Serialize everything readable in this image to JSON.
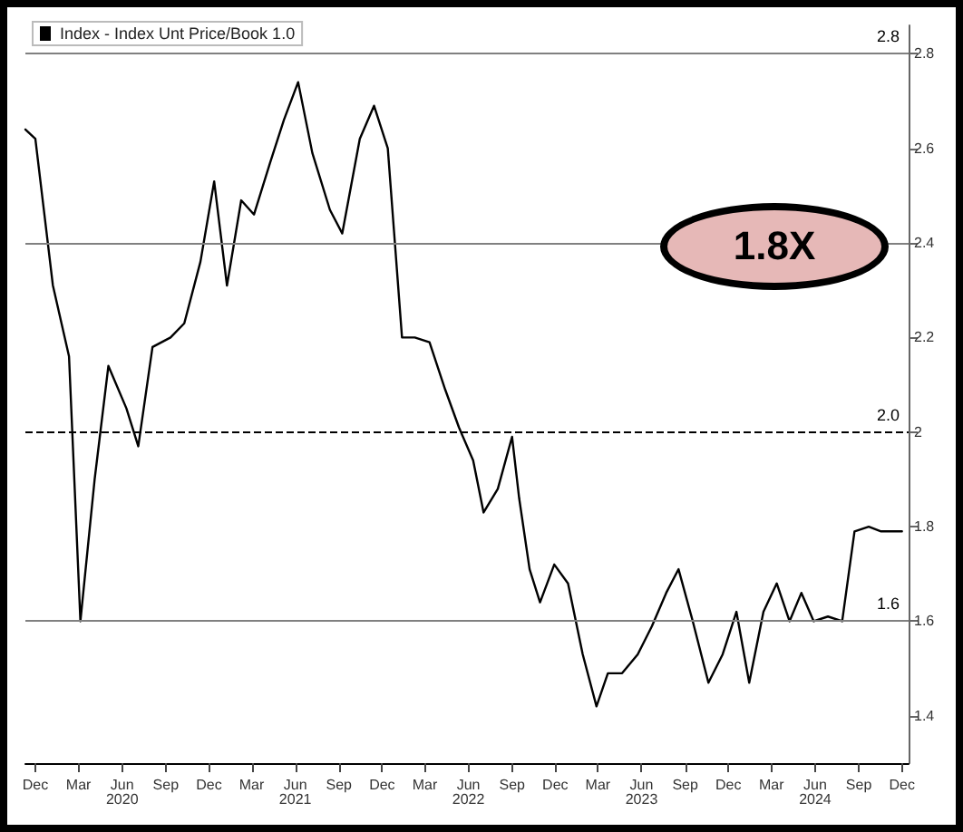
{
  "chart_data": {
    "type": "line",
    "legend": "top left",
    "grid": false,
    "marker": "none",
    "line_style": "solid",
    "annotations": [
      "1.8X"
    ],
    "xlim": [
      "2019-11-10",
      "2024-12-15"
    ],
    "xticks": [
      {
        "value": "2019-12-01",
        "label": "Dec"
      },
      {
        "value": "2020-03-01",
        "label": "Mar"
      },
      {
        "value": "2020-06-01",
        "label": "Jun\n2020"
      },
      {
        "value": "2020-09-01",
        "label": "Sep"
      },
      {
        "value": "2020-12-01",
        "label": "Dec"
      },
      {
        "value": "2021-03-01",
        "label": "Mar"
      },
      {
        "value": "2021-06-01",
        "label": "Jun\n2021"
      },
      {
        "value": "2021-09-01",
        "label": "Sep"
      },
      {
        "value": "2021-12-01",
        "label": "Dec"
      },
      {
        "value": "2022-03-01",
        "label": "Mar"
      },
      {
        "value": "2022-06-01",
        "label": "Jun\n2022"
      },
      {
        "value": "2022-09-01",
        "label": "Sep"
      },
      {
        "value": "2022-12-01",
        "label": "Dec"
      },
      {
        "value": "2023-03-01",
        "label": "Mar"
      },
      {
        "value": "2023-06-01",
        "label": "Jun\n2023"
      },
      {
        "value": "2023-09-01",
        "label": "Sep"
      },
      {
        "value": "2023-12-01",
        "label": "Dec"
      },
      {
        "value": "2024-03-01",
        "label": "Mar"
      },
      {
        "value": "2024-06-01",
        "label": "Jun\n2024"
      },
      {
        "value": "2024-09-01",
        "label": "Sep"
      },
      {
        "value": "2024-12-01",
        "label": "Dec"
      }
    ],
    "ylim": [
      1.3,
      2.86
    ],
    "yticks": [
      1.4,
      1.6,
      1.8,
      2.0,
      2.2,
      2.4,
      2.6,
      2.8
    ],
    "ref_lines": [
      {
        "axis": "y",
        "value": 2.8,
        "label": "2.8",
        "color": "#808080",
        "line_style": "solid"
      },
      {
        "axis": "y",
        "value": 2.4,
        "color": "#808080",
        "line_style": "solid"
      },
      {
        "axis": "y",
        "value": 2.0,
        "label": "2.0",
        "color": "#000000",
        "line_style": "dashed"
      },
      {
        "axis": "y",
        "value": 1.6,
        "label": "1.6",
        "color": "#808080",
        "line_style": "solid"
      }
    ],
    "x": [
      "2019-11-10",
      "2019-12-01",
      "2020-01-07",
      "2020-02-10",
      "2020-03-05",
      "2020-04-04",
      "2020-05-03",
      "2020-06-10",
      "2020-07-05",
      "2020-08-04",
      "2020-09-11",
      "2020-10-10",
      "2020-11-13",
      "2020-12-12",
      "2021-01-08",
      "2021-02-07",
      "2021-03-06",
      "2021-04-09",
      "2021-05-08",
      "2021-06-07",
      "2021-07-07",
      "2021-08-13",
      "2021-09-08",
      "2021-10-15",
      "2021-11-14",
      "2021-12-13",
      "2022-01-12",
      "2022-02-08",
      "2022-03-11",
      "2022-04-13",
      "2022-05-12",
      "2022-06-11",
      "2022-07-03",
      "2022-08-02",
      "2022-09-01",
      "2022-09-16",
      "2022-10-08",
      "2022-10-30",
      "2022-11-29",
      "2022-12-28",
      "2023-01-28",
      "2023-02-26",
      "2023-03-22",
      "2023-04-21",
      "2023-05-24",
      "2023-06-23",
      "2023-07-23",
      "2023-08-18",
      "2023-09-17",
      "2023-10-20",
      "2023-11-19",
      "2023-12-18",
      "2024-01-14",
      "2024-02-13",
      "2024-03-12",
      "2024-04-08",
      "2024-05-03",
      "2024-05-29",
      "2024-06-28",
      "2024-07-28",
      "2024-08-23",
      "2024-09-22",
      "2024-10-18",
      "2024-12-01"
    ],
    "series": [
      {
        "name": "Index - Index Unt Price/Book 1.0",
        "color": "#000000",
        "values": [
          2.64,
          2.62,
          2.31,
          2.16,
          1.6,
          1.9,
          2.14,
          2.05,
          1.97,
          2.18,
          2.2,
          2.23,
          2.36,
          2.53,
          2.31,
          2.49,
          2.46,
          2.57,
          2.66,
          2.74,
          2.59,
          2.47,
          2.42,
          2.62,
          2.69,
          2.6,
          2.2,
          2.2,
          2.19,
          2.09,
          2.01,
          1.94,
          1.83,
          1.88,
          1.99,
          1.86,
          1.71,
          1.64,
          1.72,
          1.68,
          1.53,
          1.42,
          1.49,
          1.49,
          1.53,
          1.59,
          1.66,
          1.71,
          1.6,
          1.47,
          1.53,
          1.62,
          1.47,
          1.62,
          1.68,
          1.6,
          1.66,
          1.6,
          1.61,
          1.6,
          1.79,
          1.8,
          1.79,
          1.79
        ]
      }
    ]
  }
}
